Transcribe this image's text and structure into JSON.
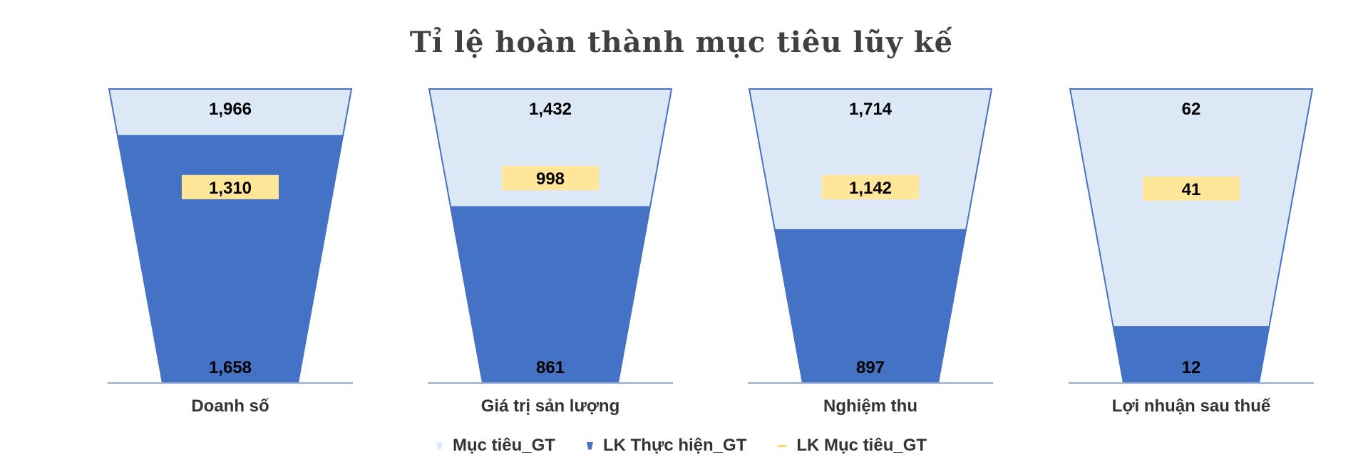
{
  "chart_data": {
    "type": "bar",
    "title": "Tỉ lệ hoàn thành mục tiêu lũy kế",
    "categories": [
      "Doanh số",
      "Giá trị sản lượng",
      "Nghiệm thu",
      "Lợi nhuận sau thuế"
    ],
    "series": [
      {
        "name": "Mục tiêu_GT",
        "values": [
          1966,
          1432,
          1714,
          62
        ]
      },
      {
        "name": "LK Thực hiện_GT",
        "values": [
          1658,
          861,
          897,
          12
        ]
      },
      {
        "name": "LK Mục tiêu_GT",
        "values": [
          1310,
          998,
          1142,
          41
        ]
      }
    ],
    "value_labels": {
      "target": [
        "1,966",
        "1,432",
        "1,714",
        "62"
      ],
      "actual": [
        "1,658",
        "861",
        "897",
        "12"
      ],
      "cumulative_target": [
        "1,310",
        "998",
        "1,142",
        "41"
      ]
    },
    "legend_position": "bottom",
    "grid": false,
    "colors": {
      "target": "#dde8f7",
      "target_border": "#4472c4",
      "actual": "#4472c4",
      "cumulative_target": "#ffe699"
    }
  },
  "legend": {
    "items": [
      {
        "label": "Mục tiêu_GT"
      },
      {
        "label": "LK Thực hiện_GT"
      },
      {
        "label": "LK Mục tiêu_GT"
      }
    ]
  }
}
